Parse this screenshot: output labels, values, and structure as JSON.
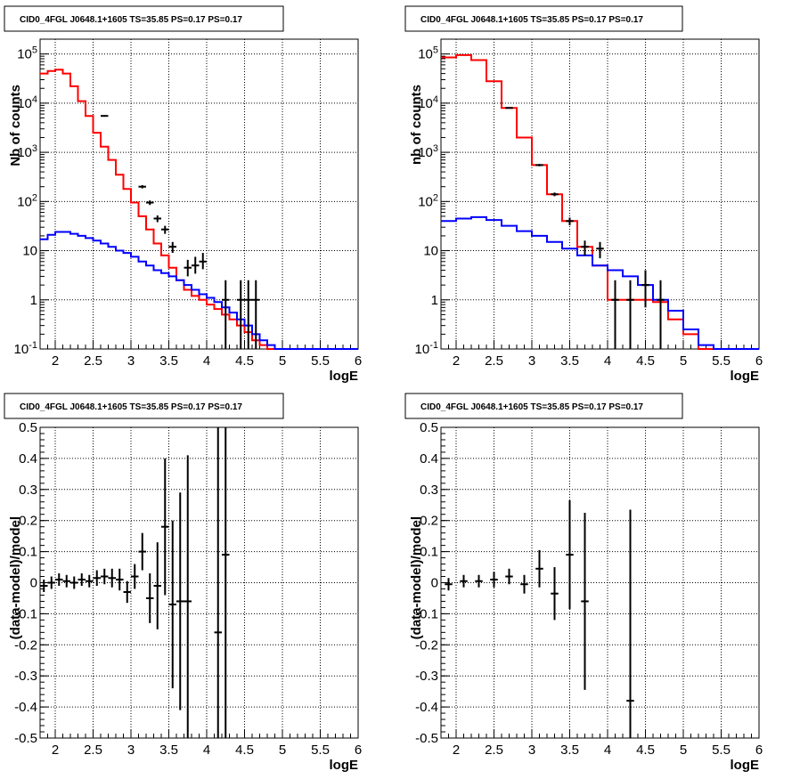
{
  "colors": {
    "data": "#000000",
    "total_model": "#ff0000",
    "model_component": "#0000ff"
  },
  "chart_data": [
    {
      "type": "line",
      "title": "CID0_4FGL J0648.1+1605 TS=35.85 PS=0.17 PS=0.17",
      "xlabel": "logE",
      "ylabel": "Nb of counts",
      "xlim": [
        1.8,
        6
      ],
      "ylim": [
        0.1,
        200000
      ],
      "yscale": "log",
      "grid": true,
      "xticks": [
        "2",
        "2.5",
        "3",
        "3.5",
        "4",
        "4.5",
        "5",
        "5.5",
        "6"
      ],
      "yticks": [
        "10^-1",
        "1",
        "10",
        "10^2",
        "10^3",
        "10^4",
        "10^5"
      ],
      "bin_edges": [
        1.8,
        1.9,
        2.0,
        2.1,
        2.2,
        2.3,
        2.4,
        2.5,
        2.6,
        2.7,
        2.8,
        2.9,
        3.0,
        3.1,
        3.2,
        3.3,
        3.4,
        3.5,
        3.6,
        3.7,
        3.8,
        3.9,
        4.0,
        4.1,
        4.2,
        4.3,
        4.4,
        4.5,
        4.6,
        4.7,
        4.8,
        4.9,
        5.0,
        5.1,
        5.2,
        5.3,
        5.4,
        5.5,
        5.6,
        5.7,
        5.8,
        5.9,
        6.0
      ],
      "series": [
        {
          "name": "",
          "kind": "total_model",
          "values": [
            40000,
            45000,
            48000,
            40000,
            22000,
            11000,
            5500,
            2500,
            1300,
            700,
            350,
            180,
            95,
            50,
            27,
            14,
            8,
            4.5,
            2.5,
            1.6,
            1.2,
            1.0,
            0.8,
            0.65,
            0.5,
            0.4,
            0.3,
            0.22,
            0.15,
            0.12,
            0.1,
            0.1,
            0.1,
            0.1,
            0.1,
            0.1,
            0.1,
            0.1,
            0.1,
            0.1,
            0.1,
            0.1
          ]
        },
        {
          "name": "",
          "kind": "model_component",
          "values": [
            17,
            21,
            24,
            24,
            22,
            20,
            18,
            16,
            14,
            12,
            10,
            9,
            7.5,
            6,
            5,
            4,
            3.5,
            3,
            2.5,
            2,
            1.6,
            1.3,
            1.1,
            0.9,
            0.7,
            0.55,
            0.4,
            0.3,
            0.2,
            0.15,
            0.12,
            0.1,
            0.1,
            0.1,
            0.1,
            0.1,
            0.1,
            0.1,
            0.1,
            0.1,
            0.1,
            0.1
          ]
        },
        {
          "name": "",
          "kind": "data",
          "points": [
            {
              "x": 2.65,
              "y": 5500,
              "lo": 5300,
              "hi": 5700
            },
            {
              "x": 3.15,
              "y": 200,
              "lo": 185,
              "hi": 215
            },
            {
              "x": 3.25,
              "y": 95,
              "lo": 85,
              "hi": 105
            },
            {
              "x": 3.35,
              "y": 45,
              "lo": 38,
              "hi": 52
            },
            {
              "x": 3.45,
              "y": 27,
              "lo": 22,
              "hi": 32
            },
            {
              "x": 3.55,
              "y": 12,
              "lo": 9,
              "hi": 15
            },
            {
              "x": 3.75,
              "y": 4.5,
              "lo": 3,
              "hi": 6.5
            },
            {
              "x": 3.85,
              "y": 5,
              "lo": 3.4,
              "hi": 7.5
            },
            {
              "x": 3.95,
              "y": 6,
              "lo": 4.2,
              "hi": 9
            },
            {
              "x": 4.25,
              "y": 1,
              "lo": 0.1,
              "hi": 2.5
            },
            {
              "x": 4.45,
              "y": 1,
              "lo": 0.1,
              "hi": 2.5
            },
            {
              "x": 4.55,
              "y": 1,
              "lo": 0.1,
              "hi": 2.5
            },
            {
              "x": 4.65,
              "y": 1,
              "lo": 0.1,
              "hi": 2.5
            }
          ]
        }
      ]
    },
    {
      "type": "line",
      "title": "CID0_4FGL J0648.1+1605 TS=35.85 PS=0.17 PS=0.17",
      "xlabel": "logE",
      "ylabel": "nb of counts",
      "xlim": [
        1.8,
        6
      ],
      "ylim": [
        0.1,
        200000
      ],
      "yscale": "log",
      "grid": true,
      "xticks": [
        "2",
        "2.5",
        "3",
        "3.5",
        "4",
        "4.5",
        "5",
        "5.5",
        "6"
      ],
      "yticks": [
        "10^-1",
        "1",
        "10",
        "10^2",
        "10^3",
        "10^4",
        "10^5"
      ],
      "bin_edges": [
        1.8,
        2.0,
        2.2,
        2.4,
        2.6,
        2.8,
        3.0,
        3.2,
        3.4,
        3.6,
        3.8,
        4.0,
        4.2,
        4.4,
        4.6,
        4.8,
        5.0,
        5.2,
        5.4,
        5.6,
        5.8,
        6.0
      ],
      "series": [
        {
          "name": "",
          "kind": "total_model",
          "values": [
            85000,
            95000,
            75000,
            28000,
            8000,
            2000,
            550,
            140,
            40,
            12,
            5,
            1,
            1,
            1,
            0.9,
            0.4,
            0.2,
            0.1,
            0.1,
            0.1,
            0.1
          ]
        },
        {
          "name": "",
          "kind": "model_component",
          "values": [
            40,
            45,
            48,
            42,
            32,
            25,
            20,
            15,
            11,
            8,
            5,
            4,
            3,
            2,
            1,
            0.6,
            0.25,
            0.12,
            0.1,
            0.1,
            0.1
          ]
        },
        {
          "name": "",
          "kind": "data",
          "points": [
            {
              "x": 2.7,
              "y": 8000,
              "lo": 7800,
              "hi": 8200
            },
            {
              "x": 3.1,
              "y": 550,
              "lo": 520,
              "hi": 580
            },
            {
              "x": 3.3,
              "y": 140,
              "lo": 128,
              "hi": 152
            },
            {
              "x": 3.5,
              "y": 40,
              "lo": 33,
              "hi": 47
            },
            {
              "x": 3.7,
              "y": 12,
              "lo": 8,
              "hi": 16
            },
            {
              "x": 3.9,
              "y": 11,
              "lo": 7,
              "hi": 15
            },
            {
              "x": 4.1,
              "y": 1,
              "lo": 0.1,
              "hi": 2.5
            },
            {
              "x": 4.3,
              "y": 1,
              "lo": 0.1,
              "hi": 2.5
            },
            {
              "x": 4.5,
              "y": 2,
              "lo": 0.7,
              "hi": 4
            },
            {
              "x": 4.7,
              "y": 1,
              "lo": 0.1,
              "hi": 2.5
            }
          ]
        }
      ]
    },
    {
      "type": "scatter",
      "title": "CID0_4FGL J0648.1+1605 TS=35.85 PS=0.17 PS=0.17",
      "xlabel": "logE",
      "ylabel": "(data-model)/model",
      "xlim": [
        1.8,
        6
      ],
      "ylim": [
        -0.5,
        0.5
      ],
      "grid": true,
      "xticks": [
        "2",
        "2.5",
        "3",
        "3.5",
        "4",
        "4.5",
        "5",
        "5.5",
        "6"
      ],
      "yticks": [
        "-0.5",
        "-0.4",
        "-0.3",
        "-0.2",
        "-0.1",
        "0",
        "0.1",
        "0.2",
        "0.3",
        "0.4",
        "0.5"
      ],
      "points": [
        {
          "x": 1.85,
          "y": -0.01,
          "err": 0.02
        },
        {
          "x": 1.95,
          "y": 0.0,
          "err": 0.02
        },
        {
          "x": 2.05,
          "y": 0.01,
          "err": 0.02
        },
        {
          "x": 2.15,
          "y": 0.005,
          "err": 0.02
        },
        {
          "x": 2.25,
          "y": 0.0,
          "err": 0.02
        },
        {
          "x": 2.35,
          "y": 0.01,
          "err": 0.02
        },
        {
          "x": 2.45,
          "y": 0.005,
          "err": 0.02
        },
        {
          "x": 2.55,
          "y": 0.015,
          "err": 0.025
        },
        {
          "x": 2.65,
          "y": 0.02,
          "err": 0.025
        },
        {
          "x": 2.75,
          "y": 0.015,
          "err": 0.03
        },
        {
          "x": 2.85,
          "y": 0.01,
          "err": 0.035
        },
        {
          "x": 2.95,
          "y": -0.03,
          "err": 0.035
        },
        {
          "x": 3.05,
          "y": 0.02,
          "err": 0.04
        },
        {
          "x": 3.15,
          "y": 0.1,
          "err": 0.06
        },
        {
          "x": 3.25,
          "y": -0.05,
          "err": 0.08
        },
        {
          "x": 3.35,
          "y": -0.01,
          "err": 0.14
        },
        {
          "x": 3.45,
          "y": 0.18,
          "err": 0.22
        },
        {
          "x": 3.55,
          "y": -0.07,
          "err": 0.27
        },
        {
          "x": 3.65,
          "y": -0.06,
          "err": 0.35
        },
        {
          "x": 3.75,
          "y": -0.06,
          "err": 0.47
        },
        {
          "x": 4.15,
          "y": -0.16,
          "err": 0.66
        },
        {
          "x": 4.25,
          "y": 0.09,
          "err": 0.6
        }
      ]
    },
    {
      "type": "scatter",
      "title": "CID0_4FGL J0648.1+1605 TS=35.85 PS=0.17 PS=0.17",
      "xlabel": "logE",
      "ylabel": "(data-model)/model",
      "xlim": [
        1.8,
        6
      ],
      "ylim": [
        -0.5,
        0.5
      ],
      "grid": true,
      "xticks": [
        "2",
        "2.5",
        "3",
        "3.5",
        "4",
        "4.5",
        "5",
        "5.5",
        "6"
      ],
      "yticks": [
        "-0.5",
        "-0.4",
        "-0.3",
        "-0.2",
        "-0.1",
        "0",
        "0.1",
        "0.2",
        "0.3",
        "0.4",
        "0.5"
      ],
      "points": [
        {
          "x": 1.9,
          "y": -0.005,
          "err": 0.02
        },
        {
          "x": 2.1,
          "y": 0.005,
          "err": 0.02
        },
        {
          "x": 2.3,
          "y": 0.005,
          "err": 0.02
        },
        {
          "x": 2.5,
          "y": 0.01,
          "err": 0.025
        },
        {
          "x": 2.7,
          "y": 0.02,
          "err": 0.025
        },
        {
          "x": 2.9,
          "y": -0.005,
          "err": 0.03
        },
        {
          "x": 3.1,
          "y": 0.045,
          "err": 0.06
        },
        {
          "x": 3.3,
          "y": -0.035,
          "err": 0.085
        },
        {
          "x": 3.5,
          "y": 0.09,
          "err": 0.175
        },
        {
          "x": 3.7,
          "y": -0.06,
          "err": 0.285
        },
        {
          "x": 4.3,
          "y": -0.38,
          "err": 0.615
        }
      ]
    }
  ]
}
